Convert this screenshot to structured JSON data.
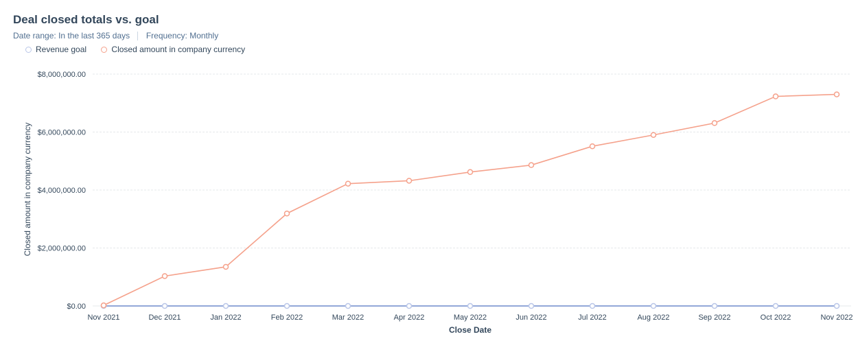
{
  "header": {
    "title": "Deal closed totals vs. goal",
    "date_range_label": "Date range:",
    "date_range_value": "In the last 365 days",
    "frequency_label": "Frequency:",
    "frequency_value": "Monthly"
  },
  "colors": {
    "closed_series": "#f5a18b",
    "goal_series": "#b9c6e8",
    "goal_line": "#6f8acb",
    "grid": "#e5e8eb",
    "axis_text": "#33475b"
  },
  "chart_data": {
    "type": "line",
    "title": "Deal closed totals vs. goal",
    "xlabel": "Close Date",
    "ylabel": "Closed amount in company currency",
    "categories": [
      "Nov 2021",
      "Dec 2021",
      "Jan 2022",
      "Feb 2022",
      "Mar 2022",
      "Apr 2022",
      "May 2022",
      "Jun 2022",
      "Jul 2022",
      "Aug 2022",
      "Sep 2022",
      "Oct 2022",
      "Nov 2022"
    ],
    "yticks": [
      0,
      2000000,
      4000000,
      6000000,
      8000000
    ],
    "ytick_labels": [
      "$0.00",
      "$2,000,000.00",
      "$4,000,000.00",
      "$6,000,000.00",
      "$8,000,000.00"
    ],
    "ylim": [
      0,
      8000000
    ],
    "legend_position": "top-left",
    "grid": true,
    "series": [
      {
        "name": "Revenue goal",
        "values": [
          0,
          0,
          0,
          0,
          0,
          0,
          0,
          0,
          0,
          0,
          0,
          0,
          0
        ]
      },
      {
        "name": "Closed amount in company currency",
        "values": [
          20000,
          1030000,
          1350000,
          3190000,
          4220000,
          4320000,
          4620000,
          4860000,
          5510000,
          5900000,
          6310000,
          7230000,
          7300000
        ]
      }
    ]
  }
}
